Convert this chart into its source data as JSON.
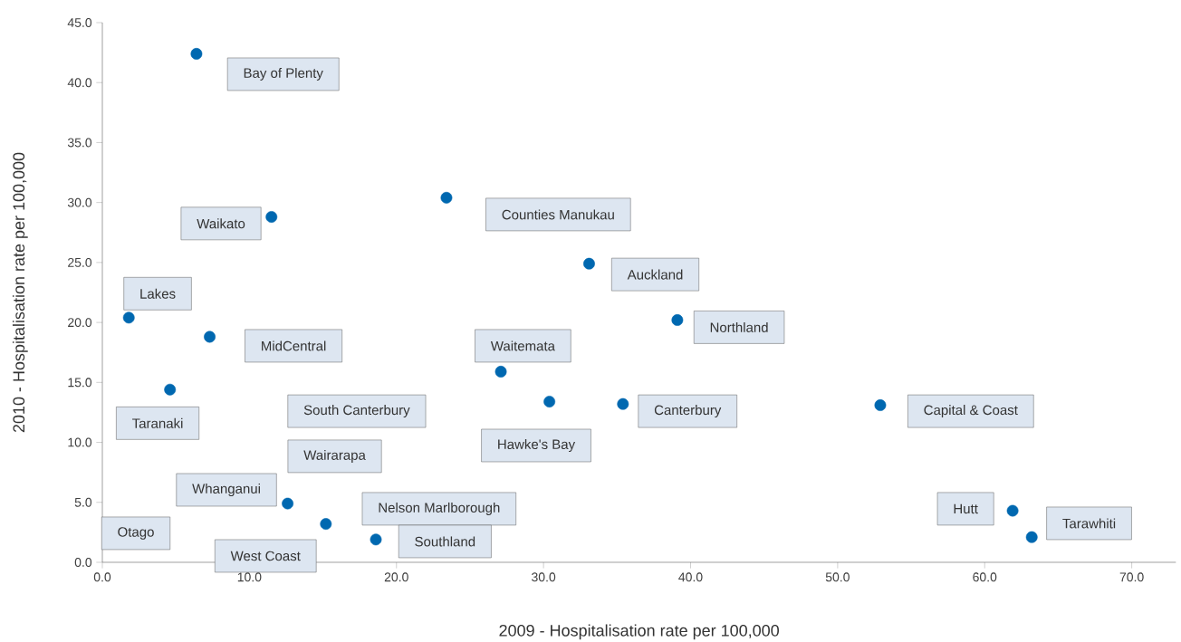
{
  "chart_data": {
    "type": "scatter",
    "xlabel": "2009 - Hospitalisation rate per 100,000",
    "ylabel": "2010 - Hospitalisation rate per 100,000",
    "x": [
      6.4,
      11.5,
      23.4,
      33.1,
      1.8,
      39.1,
      7.3,
      27.1,
      4.6,
      30.4,
      35.4,
      52.9,
      12.6,
      15.2,
      18.6,
      61.9,
      63.2
    ],
    "series": [
      {
        "color": "#0068b0",
        "values": [
          42.4,
          28.8,
          30.4,
          24.9,
          20.4,
          20.2,
          18.8,
          15.9,
          14.4,
          13.4,
          13.2,
          13.1,
          4.9,
          3.2,
          1.9,
          4.3,
          2.1
        ]
      }
    ],
    "marker": "circle",
    "xlim": [
      0,
      73
    ],
    "ylim": [
      0,
      45
    ],
    "xticks": [
      {
        "value": 0,
        "label": "0.0"
      },
      {
        "value": 10,
        "label": "10.0"
      },
      {
        "value": 20,
        "label": "20.0"
      },
      {
        "value": 30,
        "label": "30.0"
      },
      {
        "value": 40,
        "label": "40.0"
      },
      {
        "value": 50,
        "label": "50.0"
      },
      {
        "value": 60,
        "label": "60.0"
      },
      {
        "value": 70,
        "label": "70.0"
      }
    ],
    "yticks": [
      {
        "value": 0,
        "label": "0.0"
      },
      {
        "value": 5,
        "label": "5.0"
      },
      {
        "value": 10,
        "label": "10.0"
      },
      {
        "value": 15,
        "label": "15.0"
      },
      {
        "value": 20,
        "label": "20.0"
      },
      {
        "value": 25,
        "label": "25.0"
      },
      {
        "value": 30,
        "label": "30.0"
      },
      {
        "value": 35,
        "label": "35.0"
      },
      {
        "value": 40,
        "label": "40.0"
      },
      {
        "value": 45,
        "label": "45.0"
      }
    ],
    "grid": false,
    "legend": false,
    "annotations": [
      "Bay of Plenty",
      "Waikato",
      "Counties Manukau",
      "Auckland",
      "Lakes",
      "Northland",
      "MidCentral",
      "Waitemata",
      "Taranaki",
      "Hawke's Bay",
      "Canterbury",
      "Capital & Coast",
      "Whanganui",
      "Nelson Marlborough",
      "Southland",
      "Hutt",
      "Tarawhiti",
      "South Canterbury",
      "Wairarapa",
      "Otago",
      "West Coast"
    ]
  }
}
